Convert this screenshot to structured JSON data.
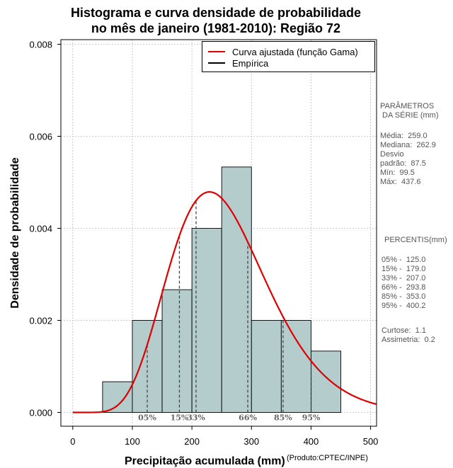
{
  "title_line1": "Histograma e curva densidade de probabilidade",
  "title_line2": "no mês de janeiro (1981-2010): Região 72",
  "chart_data": {
    "type": "bar",
    "title": "Histograma e curva densidade de probabilidade no mês de janeiro (1981-2010): Região 72",
    "xlabel": "Precipitação acumulada (mm)",
    "ylabel": "Densidade de probabilidade",
    "xlim": [
      -20,
      510
    ],
    "ylim": [
      -0.0003,
      0.0081
    ],
    "x_ticks": [
      "0",
      "100",
      "200",
      "300",
      "400",
      "500"
    ],
    "y_ticks": [
      "0.000",
      "0.002",
      "0.004",
      "0.006",
      "0.008"
    ],
    "grid": true,
    "bins": [
      {
        "from": 50,
        "to": 100,
        "density": 0.000667
      },
      {
        "from": 100,
        "to": 150,
        "density": 0.002
      },
      {
        "from": 150,
        "to": 200,
        "density": 0.002667
      },
      {
        "from": 200,
        "to": 250,
        "density": 0.004
      },
      {
        "from": 250,
        "to": 300,
        "density": 0.005333
      },
      {
        "from": 300,
        "to": 350,
        "density": 0.002
      },
      {
        "from": 350,
        "to": 400,
        "density": 0.002
      },
      {
        "from": 400,
        "to": 450,
        "density": 0.001333
      }
    ],
    "gamma_fit": {
      "name": "Curva ajustada (função Gama)",
      "color": "#e00000",
      "shape": 8.76,
      "scale": 29.57
    },
    "percentile_lines": [
      {
        "label": "05%",
        "x": 125.0
      },
      {
        "label": "15%",
        "x": 179.0
      },
      {
        "label": "33%",
        "x": 207.0
      },
      {
        "label": "66%",
        "x": 293.8
      },
      {
        "label": "85%",
        "x": 353.0
      },
      {
        "label": "95%",
        "x": 400.2
      }
    ],
    "legend": [
      {
        "label": "Curva ajustada (função Gama)",
        "color": "#e00000"
      },
      {
        "label": "Empírica",
        "color": "#000000"
      }
    ],
    "legend_position": "top-right"
  },
  "stats": {
    "params_header": "PARÂMETROS\n DA SÉRIE (mm)",
    "params_body": "Média:  259.0\nMediana:  262.9\nDesvio\npadrão:  87.5\nMín:  99.5\nMáx:  437.6",
    "percentis_header": "PERCENTIS(mm)",
    "percentis_body": "05% -  125.0\n15% -  179.0\n33% -  207.0\n66% -  293.8\n85% -  353.0\n95% -  400.2",
    "moments_body": "Curtose:  1.1\nAssimetria:  0.2"
  },
  "footer": {
    "xlabel": "Precipitação acumulada (mm)",
    "credit": "(Produto:CPTEC/INPE)"
  },
  "colors": {
    "bar_fill": "#b4cccc",
    "curve": "#e00000",
    "grid": "#bbbbbb"
  }
}
